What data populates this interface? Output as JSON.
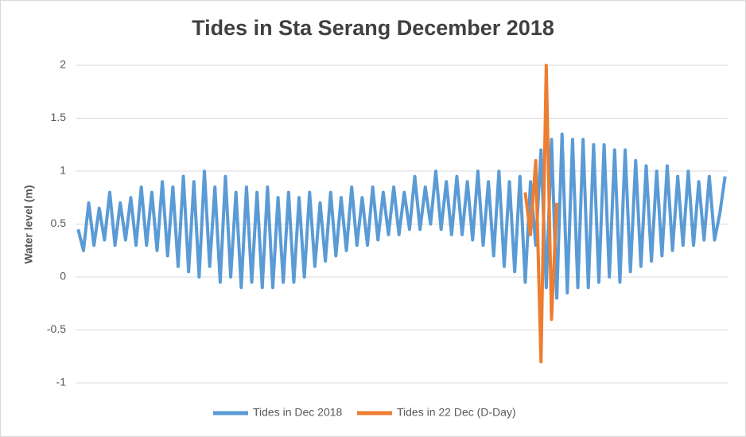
{
  "chart_data": {
    "type": "line",
    "title": "Tides in Sta Serang December 2018",
    "y_label": "Water level (m)",
    "ylim": [
      -1,
      2
    ],
    "yticks": [
      -1,
      -0.5,
      0,
      0.5,
      1,
      1.5,
      2
    ],
    "grid": true,
    "legend": "bottom",
    "series": [
      {
        "name": "Tides in Dec 2018",
        "color": "#5b9bd5",
        "values": [
          0.45,
          0.25,
          0.7,
          0.3,
          0.65,
          0.35,
          0.8,
          0.3,
          0.7,
          0.35,
          0.75,
          0.3,
          0.85,
          0.3,
          0.8,
          0.25,
          0.9,
          0.2,
          0.85,
          0.1,
          0.95,
          0.05,
          0.9,
          0.0,
          1.0,
          0.1,
          0.85,
          -0.05,
          0.95,
          0.0,
          0.8,
          -0.1,
          0.85,
          -0.05,
          0.8,
          -0.1,
          0.85,
          -0.1,
          0.75,
          -0.05,
          0.8,
          -0.05,
          0.75,
          0.0,
          0.8,
          0.1,
          0.7,
          0.15,
          0.8,
          0.2,
          0.75,
          0.25,
          0.85,
          0.3,
          0.75,
          0.3,
          0.85,
          0.35,
          0.8,
          0.4,
          0.85,
          0.4,
          0.8,
          0.45,
          0.95,
          0.45,
          0.85,
          0.5,
          1.0,
          0.45,
          0.9,
          0.4,
          0.95,
          0.4,
          0.9,
          0.35,
          1.0,
          0.3,
          0.9,
          0.2,
          1.0,
          0.1,
          0.9,
          0.05,
          0.95,
          -0.05,
          0.9,
          0.3,
          1.2,
          -0.1,
          1.3,
          -0.2,
          1.35,
          -0.15,
          1.3,
          -0.1,
          1.3,
          -0.1,
          1.25,
          -0.05,
          1.25,
          0.0,
          1.2,
          -0.05,
          1.2,
          0.05,
          1.1,
          0.1,
          1.05,
          0.15,
          1.0,
          0.2,
          1.05,
          0.25,
          0.95,
          0.3,
          1.0,
          0.3,
          0.9,
          0.35,
          0.95,
          0.35,
          0.6,
          0.95
        ]
      },
      {
        "name": "Tides in 22 Dec (D-Day)",
        "color": "#ed7d31",
        "values": [
          null,
          null,
          null,
          null,
          null,
          null,
          null,
          null,
          null,
          null,
          null,
          null,
          null,
          null,
          null,
          null,
          null,
          null,
          null,
          null,
          null,
          null,
          null,
          null,
          null,
          null,
          null,
          null,
          null,
          null,
          null,
          null,
          null,
          null,
          null,
          null,
          null,
          null,
          null,
          null,
          null,
          null,
          null,
          null,
          null,
          null,
          null,
          null,
          null,
          null,
          null,
          null,
          null,
          null,
          null,
          null,
          null,
          null,
          null,
          null,
          null,
          null,
          null,
          null,
          null,
          null,
          null,
          null,
          null,
          null,
          null,
          null,
          null,
          null,
          null,
          null,
          null,
          null,
          null,
          null,
          null,
          null,
          null,
          null,
          null,
          0.8,
          0.4,
          1.1,
          -0.8,
          2.0,
          -0.4,
          0.7,
          null,
          null,
          null,
          null,
          null,
          null,
          null,
          null,
          null,
          null,
          null,
          null,
          null,
          null,
          null,
          null,
          null,
          null,
          null,
          null,
          null,
          null,
          null,
          null,
          null,
          null,
          null,
          null,
          null,
          null,
          null,
          null
        ]
      }
    ]
  }
}
